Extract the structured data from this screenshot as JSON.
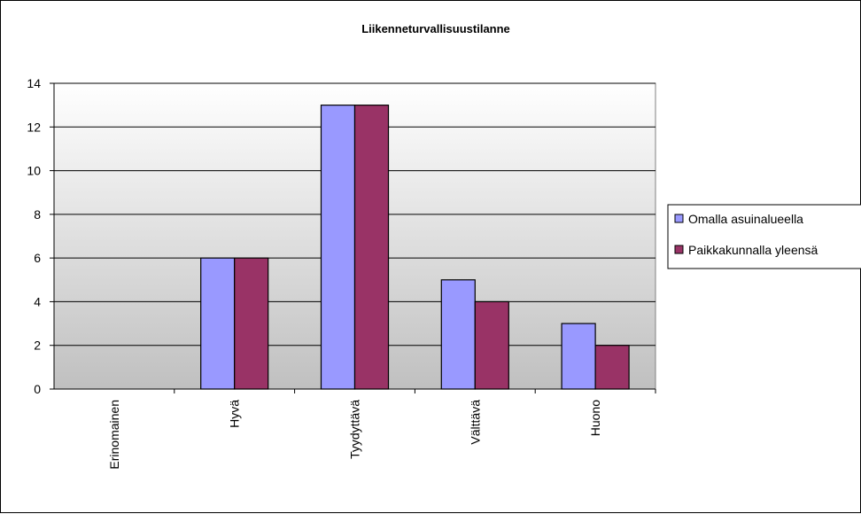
{
  "chart_data": {
    "type": "bar",
    "title": "Liikenneturvallisuustilanne",
    "xlabel": "",
    "ylabel": "",
    "categories": [
      "Erinomainen",
      "Hyvä",
      "Tyydyttävä",
      "Välttävä",
      "Huono"
    ],
    "series": [
      {
        "name": "Omalla asuinalueella",
        "values": [
          0,
          6,
          13,
          5,
          3
        ],
        "color": "#9999ff"
      },
      {
        "name": "Paikkakunnalla yleensä",
        "values": [
          0,
          6,
          13,
          4,
          2
        ],
        "color": "#993366"
      }
    ],
    "ylim": [
      0,
      14
    ],
    "yticks": [
      0,
      2,
      4,
      6,
      8,
      10,
      12,
      14
    ],
    "ytick_labels": [
      "0",
      "2",
      "4",
      "6",
      "8",
      "10",
      "12",
      "14"
    ],
    "grid": true,
    "legend_position": "right",
    "plot_background": "gradient white to gray"
  }
}
